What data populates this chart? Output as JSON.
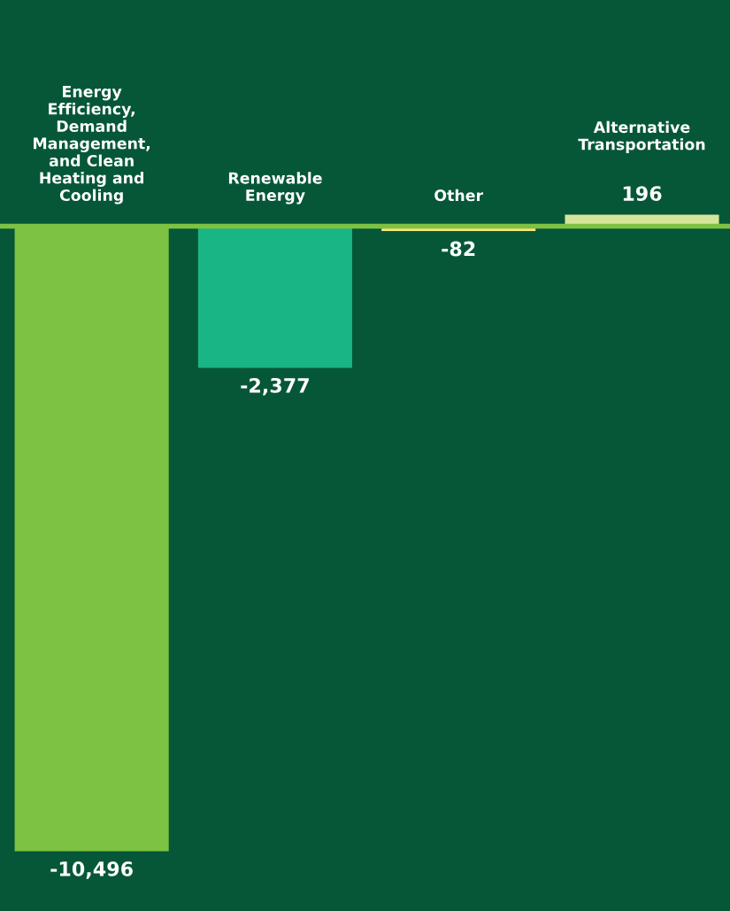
{
  "chart_data": {
    "type": "bar",
    "categories": [
      "Energy\nEfficiency,\nDemand\nManagement,\nand Clean\nHeating and\nCooling",
      "Renewable\nEnergy",
      "Other",
      "Alternative\nTransportation"
    ],
    "values": [
      -10496,
      -2377,
      -82,
      196
    ],
    "colors": [
      "#7dc242",
      "#1ab585",
      "#f5e27a",
      "#d4e59a"
    ],
    "ylim": [
      -11500,
      3800
    ],
    "value_labels": [
      "-10,496",
      "-2,377",
      "-82",
      "196"
    ],
    "grid": false,
    "legend": false
  }
}
